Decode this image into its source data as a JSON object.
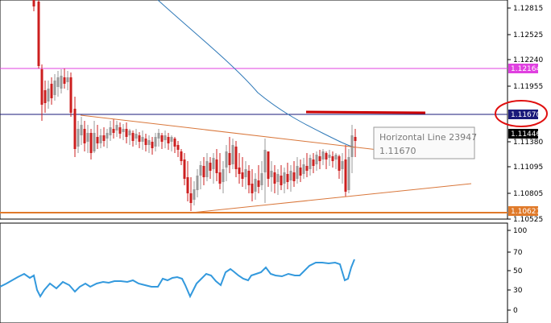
{
  "colors": {
    "background": "#ffffff",
    "bull_candle": "#9a9a9a",
    "bear_candle": "#cc1f1f",
    "moving_average": "#2f79b8",
    "trendline": "#d9773b",
    "magenta_line": "#e040e0",
    "navy_line": "#1a1a7a",
    "support_line": "#e07a2a",
    "red_segment": "#cc0000",
    "circle_annotation": "#e01010",
    "indicator_line": "#3399dd",
    "tag_magenta": "#e040e0",
    "tag_navy": "#1a1a7a",
    "tag_black": "#000000",
    "tag_orange": "#e07a2a"
  },
  "price_axis": {
    "ticks": [
      "1.12815",
      "1.12525",
      "1.12240",
      "1.11955",
      "1.11380",
      "1.11095",
      "1.10805",
      "1.10525"
    ]
  },
  "price_tags": {
    "magenta": "1.12164",
    "navy": "1.11670",
    "current": "1.11446",
    "support": "1.10621"
  },
  "tooltip": {
    "title": "Horizontal Line 23947",
    "value": "1.11670"
  },
  "indicator_axis": {
    "ticks": [
      "100",
      "70",
      "50",
      "30",
      "0"
    ],
    "level": 0.62
  },
  "chart_data": {
    "type": "candlestick",
    "y_range_price": [
      1.105,
      1.129
    ],
    "horizontal_lines": [
      1.12164,
      1.1167,
      1.10621
    ],
    "current_price": 1.11446,
    "indicator_range": [
      0,
      100
    ]
  }
}
